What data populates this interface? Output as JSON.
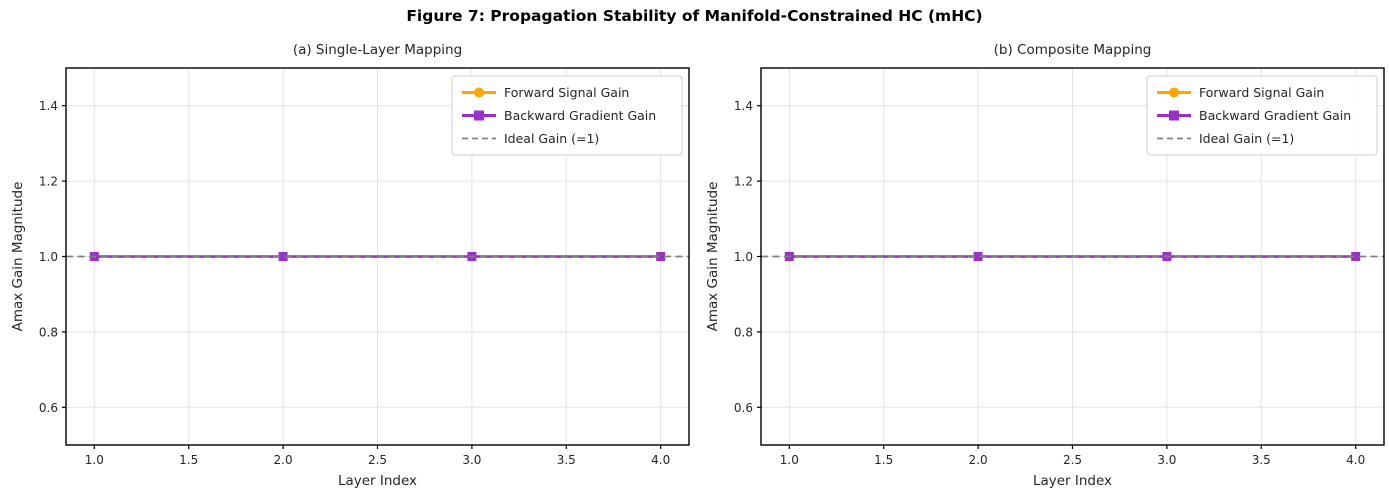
{
  "figure": {
    "title": "Figure 7: Propagation Stability of Manifold-Constrained HC (mHC)"
  },
  "colors": {
    "forward": "#FFA500",
    "backward": "#9B30C8",
    "ideal": "#808080",
    "grid": "#E3E3E3",
    "frame": "#000000",
    "text": "#262626",
    "legend_border": "#CCCCCC",
    "background": "#FFFFFF"
  },
  "chart_data": [
    {
      "type": "line",
      "title": "(a) Single-Layer Mapping",
      "xlabel": "Layer Index",
      "ylabel": "Amax Gain Magnitude",
      "x": [
        1.0,
        2.0,
        3.0,
        4.0
      ],
      "series": [
        {
          "name": "Forward Signal Gain",
          "values": [
            1.0,
            1.0,
            1.0,
            1.0
          ],
          "color": "#FFA500",
          "marker": "circle",
          "linestyle": "solid",
          "full_width": false
        },
        {
          "name": "Backward Gradient Gain",
          "values": [
            1.0,
            1.0,
            1.0,
            1.0
          ],
          "color": "#9B30C8",
          "marker": "square",
          "linestyle": "solid",
          "full_width": false
        },
        {
          "name": "Ideal Gain (=1)",
          "values": [
            1.0,
            1.0,
            1.0,
            1.0
          ],
          "color": "#808080",
          "marker": "none",
          "linestyle": "dashed",
          "full_width": true
        }
      ],
      "xlim": [
        0.85,
        4.15
      ],
      "ylim": [
        0.5,
        1.5
      ],
      "xticks": [
        1.0,
        1.5,
        2.0,
        2.5,
        3.0,
        3.5,
        4.0
      ],
      "yticks": [
        0.6,
        0.8,
        1.0,
        1.2,
        1.4
      ],
      "grid": true,
      "legend_position": "upper right"
    },
    {
      "type": "line",
      "title": "(b) Composite Mapping",
      "xlabel": "Layer Index",
      "ylabel": "Amax Gain Magnitude",
      "x": [
        1.0,
        2.0,
        3.0,
        4.0
      ],
      "series": [
        {
          "name": "Forward Signal Gain",
          "values": [
            1.0,
            1.0,
            1.0,
            1.0
          ],
          "color": "#FFA500",
          "marker": "circle",
          "linestyle": "solid",
          "full_width": false
        },
        {
          "name": "Backward Gradient Gain",
          "values": [
            1.0,
            1.0,
            1.0,
            1.0
          ],
          "color": "#9B30C8",
          "marker": "square",
          "linestyle": "solid",
          "full_width": false
        },
        {
          "name": "Ideal Gain (=1)",
          "values": [
            1.0,
            1.0,
            1.0,
            1.0
          ],
          "color": "#808080",
          "marker": "none",
          "linestyle": "dashed",
          "full_width": true
        }
      ],
      "xlim": [
        0.85,
        4.15
      ],
      "ylim": [
        0.5,
        1.5
      ],
      "xticks": [
        1.0,
        1.5,
        2.0,
        2.5,
        3.0,
        3.5,
        4.0
      ],
      "yticks": [
        0.6,
        0.8,
        1.0,
        1.2,
        1.4
      ],
      "grid": true,
      "legend_position": "upper right"
    }
  ]
}
